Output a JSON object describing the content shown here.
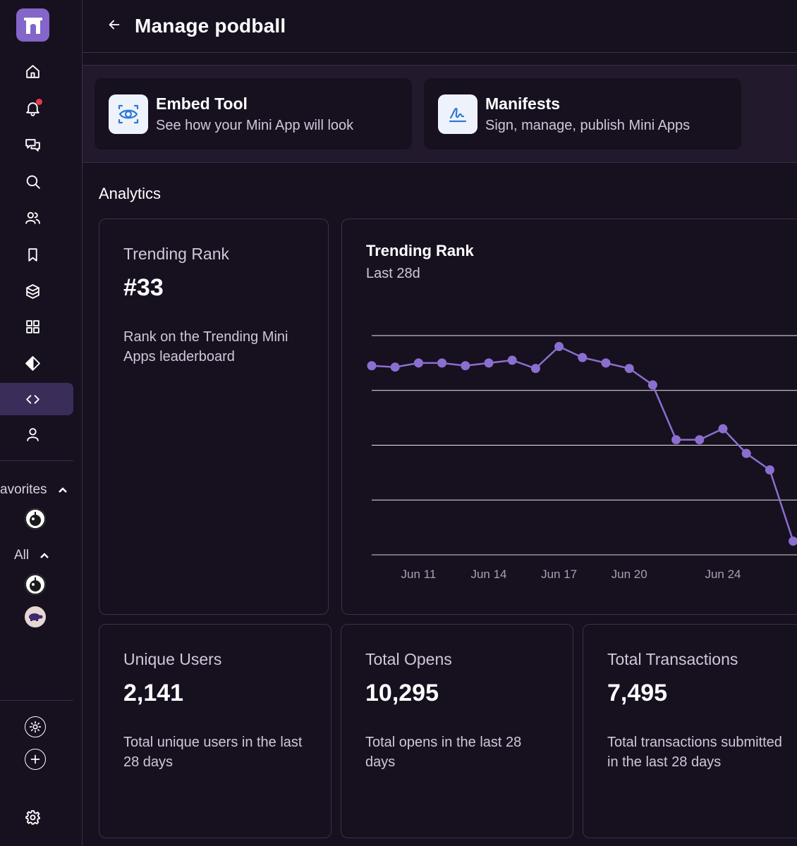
{
  "header": {
    "title": "Manage podball"
  },
  "tools": [
    {
      "title": "Embed Tool",
      "subtitle": "See how your Mini App will look",
      "icon": "eye-icon"
    },
    {
      "title": "Manifests",
      "subtitle": "Sign, manage, publish Mini Apps",
      "icon": "signature-icon"
    }
  ],
  "sidebar": {
    "favorites_label": "avorites",
    "all_label": "All",
    "nav": [
      "home-icon",
      "bell-icon",
      "chat-icon",
      "search-icon",
      "users-icon",
      "bookmark-icon",
      "cube-icon",
      "grid-icon",
      "diamond-icon",
      "code-icon",
      "person-icon"
    ],
    "active": "code-icon"
  },
  "analytics": {
    "title": "Analytics",
    "trending": {
      "label": "Trending Rank",
      "value": "#33",
      "desc": "Rank on the Trending Mini Apps leaderboard"
    },
    "unique_users": {
      "label": "Unique Users",
      "value": "2,141",
      "desc": "Total unique users in the last 28 days"
    },
    "total_opens": {
      "label": "Total Opens",
      "value": "10,295",
      "desc": "Total opens in the last 28 days"
    },
    "total_transactions": {
      "label": "Total Transactions",
      "value": "7,495",
      "desc": "Total transactions submitted in the last 28 days"
    }
  },
  "chart_data": {
    "type": "line",
    "title": "Trending Rank",
    "subtitle": "Last 28d",
    "x": [
      "Jun 9",
      "Jun 10",
      "Jun 11",
      "Jun 12",
      "Jun 13",
      "Jun 14",
      "Jun 15",
      "Jun 16",
      "Jun 17",
      "Jun 18",
      "Jun 19",
      "Jun 20",
      "Jun 21",
      "Jun 22",
      "Jun 23",
      "Jun 24",
      "Jun 25",
      "Jun 26",
      "Jun 27"
    ],
    "tick_labels": [
      "Jun 11",
      "Jun 14",
      "Jun 17",
      "Jun 20",
      "Jun 24"
    ],
    "series": [
      {
        "values": [
          77,
          77.5,
          76,
          76,
          77,
          76,
          75,
          78,
          70,
          74,
          76,
          78,
          84,
          104,
          104,
          100,
          109,
          115,
          141
        ]
      }
    ],
    "ylim": [
      66,
      146
    ],
    "grid": true,
    "color": "#8a6fd0"
  }
}
